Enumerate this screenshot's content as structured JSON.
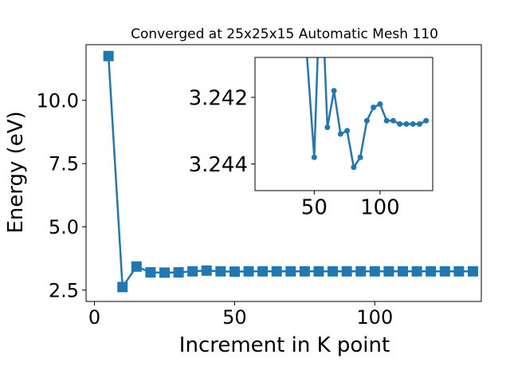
{
  "chart_data": [
    {
      "type": "line",
      "title": "Converged at 25x25x15 Automatic Mesh 110",
      "xlabel": "Increment in K point",
      "ylabel": "Energy (eV)",
      "xlim": [
        -3,
        138
      ],
      "ylim": [
        2.05,
        12.2
      ],
      "xticks": [
        0,
        50,
        100
      ],
      "yticks": [
        2.5,
        5.0,
        7.5,
        10.0
      ],
      "grid": false,
      "marker": "square",
      "color": "#1f77b4",
      "series": [
        {
          "x": [
            5,
            10,
            15,
            20,
            25,
            30,
            35,
            40,
            45,
            50,
            55,
            60,
            65,
            70,
            75,
            80,
            85,
            90,
            95,
            100,
            105,
            110,
            115,
            120,
            125,
            130,
            135
          ],
          "y": [
            11.75,
            2.62,
            3.43,
            3.2,
            3.19,
            3.2,
            3.24,
            3.27,
            3.24,
            3.23,
            3.24,
            3.24,
            3.24,
            3.24,
            3.24,
            3.24,
            3.24,
            3.24,
            3.24,
            3.24,
            3.24,
            3.24,
            3.24,
            3.24,
            3.24,
            3.24,
            3.24
          ]
        }
      ]
    },
    {
      "type": "line",
      "inset": true,
      "xlim": [
        5,
        140
      ],
      "ylim": [
        3.2448,
        3.2408
      ],
      "xticks": [
        50,
        100
      ],
      "yticks": [
        3.242,
        3.244
      ],
      "grid": false,
      "marker": "circle",
      "color": "#1f77b4",
      "series": [
        {
          "x": [
            40,
            50,
            55,
            60,
            65,
            70,
            75,
            80,
            85,
            90,
            95,
            100,
            105,
            110,
            115,
            120,
            125,
            130,
            135
          ],
          "y": [
            3.2383,
            3.2438,
            3.238,
            3.2429,
            3.2418,
            3.2431,
            3.243,
            3.2441,
            3.2438,
            3.2427,
            3.2423,
            3.2422,
            3.2427,
            3.2427,
            3.2428,
            3.2428,
            3.2428,
            3.2428,
            3.2427
          ]
        }
      ]
    }
  ]
}
